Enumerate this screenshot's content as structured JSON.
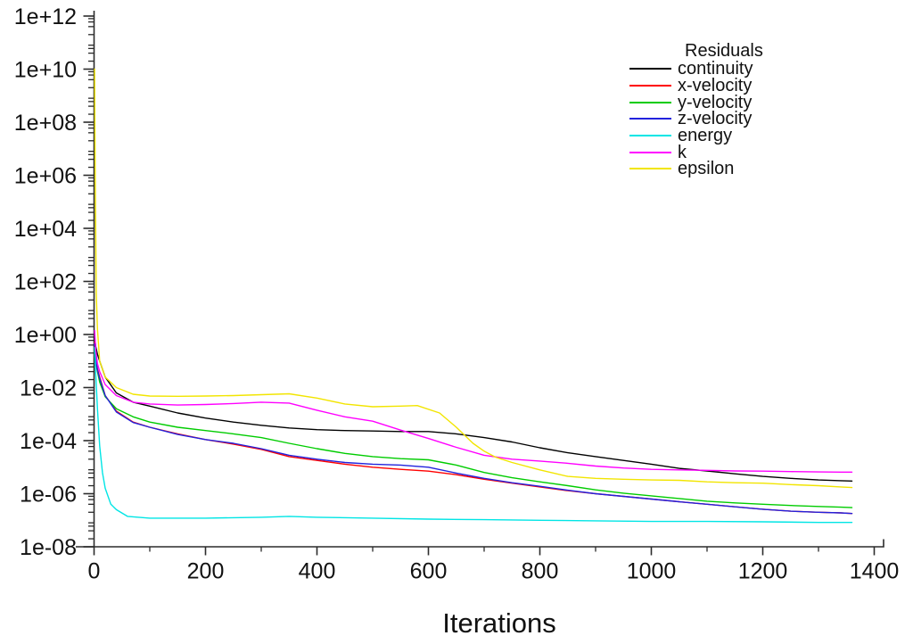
{
  "window": {
    "background": "#ffffff",
    "text_color": "#111111",
    "axis_color": "#2b2b2b"
  },
  "chart_data": {
    "type": "line",
    "title": "Residuals",
    "xlabel": "Iterations",
    "grid": false,
    "legend_position": "top-right",
    "x_axis": {
      "min": 0,
      "max": 1400,
      "major_ticks": [
        {
          "value": 0,
          "label": "0"
        },
        {
          "value": 200,
          "label": "200"
        },
        {
          "value": 400,
          "label": "400"
        },
        {
          "value": 600,
          "label": "600"
        },
        {
          "value": 800,
          "label": "800"
        },
        {
          "value": 1000,
          "label": "1000"
        },
        {
          "value": 1200,
          "label": "1200"
        },
        {
          "value": 1400,
          "label": "1400"
        }
      ],
      "minor_tick_step": 100
    },
    "y_axis": {
      "scale": "log",
      "min": 1e-08,
      "max": 1000000000000.0,
      "major_ticks": [
        {
          "value": 1000000000000.0,
          "label": "1e+12"
        },
        {
          "value": 10000000000.0,
          "label": "1e+10"
        },
        {
          "value": 100000000.0,
          "label": "1e+08"
        },
        {
          "value": 1000000.0,
          "label": "1e+06"
        },
        {
          "value": 10000.0,
          "label": "1e+04"
        },
        {
          "value": 100.0,
          "label": "1e+02"
        },
        {
          "value": 1.0,
          "label": "1e+00"
        },
        {
          "value": 0.01,
          "label": "1e-02"
        },
        {
          "value": 0.0001,
          "label": "1e-04"
        },
        {
          "value": 1e-06,
          "label": "1e-06"
        },
        {
          "value": 1e-08,
          "label": "1e-08"
        }
      ]
    },
    "series": [
      {
        "name": "continuity",
        "color": "#000000",
        "x": [
          1,
          3,
          6,
          10,
          20,
          40,
          70,
          100,
          150,
          200,
          250,
          300,
          350,
          400,
          450,
          500,
          550,
          600,
          650,
          700,
          750,
          800,
          850,
          900,
          950,
          1000,
          1050,
          1100,
          1150,
          1200,
          1250,
          1300,
          1340,
          1360
        ],
        "y": [
          0.8,
          0.35,
          0.18,
          0.1,
          0.025,
          0.0063,
          0.0028,
          0.002,
          0.0011,
          0.00071,
          0.0005,
          0.00038,
          0.0003,
          0.00026,
          0.00024,
          0.00023,
          0.00022,
          0.00022,
          0.00018,
          0.00013,
          8.9e-05,
          5.4e-05,
          3.5e-05,
          2.5e-05,
          1.8e-05,
          1.3e-05,
          9e-06,
          7.2e-06,
          5.6e-06,
          4.5e-06,
          3.8e-06,
          3.3e-06,
          3.1e-06,
          3e-06
        ]
      },
      {
        "name": "x-velocity",
        "color": "#ff0000",
        "x": [
          1,
          3,
          6,
          10,
          20,
          40,
          70,
          100,
          150,
          200,
          250,
          300,
          350,
          400,
          450,
          500,
          550,
          600,
          650,
          700,
          750,
          800,
          850,
          900,
          950,
          1000,
          1050,
          1100,
          1150,
          1200,
          1250,
          1300,
          1340,
          1360
        ],
        "y": [
          0.5,
          0.13,
          0.05,
          0.025,
          0.005,
          0.0013,
          0.0005,
          0.00032,
          0.00018,
          0.00011,
          7.4e-05,
          4.7e-05,
          2.5e-05,
          1.8e-05,
          1.3e-05,
          1e-05,
          8.3e-06,
          7.1e-06,
          5.2e-06,
          3.5e-06,
          2.5e-06,
          1.8e-06,
          1.3e-06,
          1e-06,
          7.9e-07,
          6.3e-07,
          5e-07,
          4e-07,
          3.2e-07,
          2.6e-07,
          2.2e-07,
          2e-07,
          1.9e-07,
          1.8e-07
        ]
      },
      {
        "name": "y-velocity",
        "color": "#00cc00",
        "x": [
          1,
          3,
          6,
          10,
          20,
          40,
          70,
          100,
          150,
          200,
          250,
          300,
          350,
          400,
          450,
          500,
          550,
          600,
          650,
          700,
          750,
          800,
          850,
          900,
          950,
          1000,
          1050,
          1100,
          1150,
          1200,
          1250,
          1300,
          1340,
          1360
        ],
        "y": [
          0.35,
          0.1,
          0.04,
          0.016,
          0.0045,
          0.0016,
          0.00079,
          0.0005,
          0.00032,
          0.00024,
          0.00018,
          0.00013,
          7.9e-05,
          5e-05,
          3.3e-05,
          2.5e-05,
          2.1e-05,
          1.9e-05,
          1.2e-05,
          6.3e-06,
          4e-06,
          2.8e-06,
          2e-06,
          1.4e-06,
          1.05e-06,
          8.3e-07,
          6.6e-07,
          5.2e-07,
          4.5e-07,
          4e-07,
          3.6e-07,
          3.3e-07,
          3.1e-07,
          3e-07
        ]
      },
      {
        "name": "z-velocity",
        "color": "#2222dd",
        "x": [
          1,
          3,
          6,
          10,
          20,
          40,
          70,
          100,
          150,
          200,
          250,
          300,
          350,
          400,
          450,
          500,
          550,
          600,
          650,
          700,
          750,
          800,
          850,
          900,
          950,
          1000,
          1050,
          1100,
          1150,
          1200,
          1250,
          1300,
          1340,
          1360
        ],
        "y": [
          0.45,
          0.11,
          0.045,
          0.022,
          0.005,
          0.0012,
          0.00048,
          0.00032,
          0.00017,
          0.00011,
          7.9e-05,
          5e-05,
          2.8e-05,
          2e-05,
          1.5e-05,
          1.3e-05,
          1.2e-05,
          1e-05,
          6e-06,
          3.8e-06,
          2.6e-06,
          1.9e-06,
          1.35e-06,
          1e-06,
          7.9e-07,
          6.3e-07,
          5e-07,
          4e-07,
          3.2e-07,
          2.6e-07,
          2.2e-07,
          2e-07,
          1.9e-07,
          1.8e-07
        ]
      },
      {
        "name": "energy",
        "color": "#00e5e5",
        "x": [
          1,
          3,
          6,
          10,
          15,
          20,
          30,
          40,
          60,
          100,
          150,
          200,
          250,
          300,
          350,
          400,
          500,
          600,
          700,
          800,
          900,
          1000,
          1100,
          1200,
          1300,
          1360
        ],
        "y": [
          0.32,
          0.032,
          0.0016,
          6.3e-05,
          6.3e-06,
          1.6e-06,
          4e-07,
          2.5e-07,
          1.4e-07,
          1.2e-07,
          1.2e-07,
          1.2e-07,
          1.25e-07,
          1.3e-07,
          1.4e-07,
          1.3e-07,
          1.2e-07,
          1.1e-07,
          1.05e-07,
          1e-07,
          9.5e-08,
          9e-08,
          9e-08,
          8.7e-08,
          8.3e-08,
          8.3e-08
        ]
      },
      {
        "name": "k",
        "color": "#ff00ff",
        "x": [
          1,
          3,
          6,
          10,
          20,
          40,
          70,
          100,
          150,
          200,
          250,
          300,
          350,
          400,
          450,
          500,
          550,
          600,
          650,
          700,
          750,
          800,
          850,
          900,
          950,
          1000,
          1050,
          1100,
          1150,
          1200,
          1250,
          1300,
          1340,
          1360
        ],
        "y": [
          1.4,
          0.25,
          0.079,
          0.04,
          0.013,
          0.005,
          0.0028,
          0.0024,
          0.0022,
          0.0023,
          0.0025,
          0.0028,
          0.0026,
          0.0014,
          0.00079,
          0.00054,
          0.00025,
          0.00012,
          5.6e-05,
          2.8e-05,
          2e-05,
          1.7e-05,
          1.4e-05,
          1.1e-05,
          9.3e-06,
          8.3e-06,
          7.9e-06,
          7.6e-06,
          7.2e-06,
          7.1e-06,
          6.8e-06,
          6.6e-06,
          6.5e-06,
          6.5e-06
        ]
      },
      {
        "name": "epsilon",
        "color": "#f2e500",
        "x": [
          1,
          2,
          4,
          6,
          10,
          20,
          40,
          70,
          100,
          150,
          200,
          250,
          300,
          350,
          400,
          450,
          500,
          550,
          580,
          620,
          650,
          680,
          700,
          720,
          750,
          800,
          850,
          900,
          950,
          1000,
          1050,
          1100,
          1150,
          1200,
          1250,
          1300,
          1340,
          1360
        ],
        "y": [
          10000000000.0,
          1000000.0,
          32,
          1.6,
          0.1,
          0.025,
          0.01,
          0.0056,
          0.0048,
          0.0047,
          0.0048,
          0.005,
          0.0054,
          0.0058,
          0.004,
          0.0024,
          0.0019,
          0.002,
          0.0021,
          0.0011,
          0.00032,
          7.9e-05,
          4e-05,
          2.4e-05,
          1.5e-05,
          7.9e-06,
          4.5e-06,
          3.8e-06,
          3.5e-06,
          3.3e-06,
          3.2e-06,
          2.8e-06,
          2.6e-06,
          2.5e-06,
          2.2e-06,
          2e-06,
          1.8e-06,
          1.7e-06
        ]
      }
    ]
  }
}
